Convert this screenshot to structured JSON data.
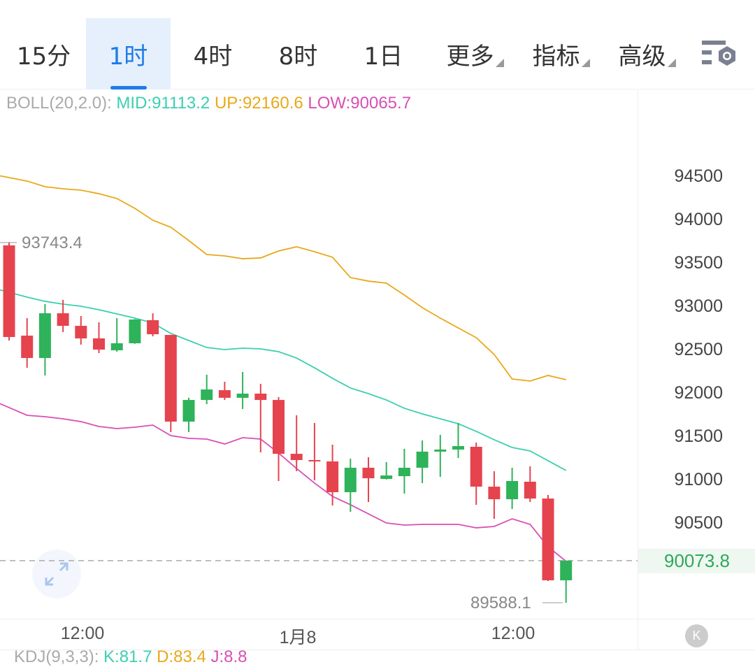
{
  "tabs": [
    {
      "label": "15分",
      "active": false,
      "dropdown": false
    },
    {
      "label": "1时",
      "active": true,
      "dropdown": false
    },
    {
      "label": "4时",
      "active": false,
      "dropdown": false
    },
    {
      "label": "8时",
      "active": false,
      "dropdown": false
    },
    {
      "label": "1日",
      "active": false,
      "dropdown": false
    },
    {
      "label": "更多",
      "active": false,
      "dropdown": true
    },
    {
      "label": "指标",
      "active": false,
      "dropdown": true
    },
    {
      "label": "高级",
      "active": false,
      "dropdown": true
    }
  ],
  "settings_icon": "chart-settings-icon",
  "legend": {
    "name": "BOLL(20,2.0):",
    "mid": "MID:91113.2",
    "up": "UP:92160.6",
    "low": "LOW:90065.7"
  },
  "colors": {
    "up_candle": "#2fb35a",
    "down_candle": "#e5444f",
    "mid": "#3ccfb0",
    "upper": "#e8a91a",
    "lower": "#d94fb5",
    "accent": "#1e7ce8"
  },
  "chart_data": {
    "type": "candlestick",
    "ylim": [
      89400,
      95300
    ],
    "y_ticks": [
      "94500",
      "94000",
      "93500",
      "93000",
      "92500",
      "92000",
      "91500",
      "91000",
      "90500"
    ],
    "x_ticks": [
      "12:00",
      "1月8",
      "12:00"
    ],
    "last_price": "90073.8",
    "high_label": "93743.4",
    "low_label": "89588.1",
    "candles": [
      [
        93710,
        93743.4,
        92613,
        92653
      ],
      [
        92669,
        92871,
        92298,
        92411
      ],
      [
        92411,
        93032,
        92210,
        92927
      ],
      [
        92927,
        93081,
        92710,
        92782
      ],
      [
        92782,
        92895,
        92565,
        92637
      ],
      [
        92637,
        92823,
        92468,
        92508
      ],
      [
        92500,
        92871,
        92484,
        92581
      ],
      [
        92581,
        92860,
        92575,
        92855
      ],
      [
        92847,
        92927,
        92661,
        92685
      ],
      [
        92677,
        92677,
        91556,
        91677
      ],
      [
        91677,
        91952,
        91556,
        91927
      ],
      [
        91927,
        92218,
        91879,
        92048
      ],
      [
        92040,
        92137,
        91927,
        91952
      ],
      [
        91952,
        92250,
        91823,
        92000
      ],
      [
        92000,
        92113,
        91323,
        91927
      ],
      [
        91927,
        91960,
        90992,
        91306
      ],
      [
        91306,
        91750,
        91105,
        91234
      ],
      [
        91234,
        91661,
        91000,
        91218
      ],
      [
        91218,
        91411,
        90710,
        90863
      ],
      [
        90863,
        91250,
        90637,
        91145
      ],
      [
        91145,
        91266,
        90750,
        91024
      ],
      [
        91016,
        91210,
        91010,
        91056
      ],
      [
        91048,
        91363,
        90847,
        91145
      ],
      [
        91145,
        91460,
        90968,
        91331
      ],
      [
        91331,
        91524,
        91040,
        91355
      ],
      [
        91355,
        91661,
        91258,
        91395
      ],
      [
        91387,
        91435,
        90718,
        90927
      ],
      [
        90927,
        91105,
        90556,
        90782
      ],
      [
        90782,
        91145,
        90669,
        90992
      ],
      [
        90984,
        91161,
        90750,
        90790
      ],
      [
        90790,
        90831,
        89839,
        89847
      ],
      [
        89847,
        90073.8,
        89588.1,
        90073.8
      ]
    ],
    "boll_mid": [
      93169,
      93113,
      93065,
      93032,
      93008,
      92968,
      92919,
      92871,
      92815,
      92694,
      92613,
      92532,
      92508,
      92524,
      92516,
      92484,
      92411,
      92298,
      92177,
      92065,
      92000,
      91927,
      91831,
      91766,
      91710,
      91653,
      91565,
      91468,
      91379,
      91339,
      91226,
      91113.2
    ],
    "boll_up": [
      94492,
      94452,
      94387,
      94363,
      94347,
      94306,
      94250,
      94137,
      94000,
      93919,
      93766,
      93605,
      93589,
      93556,
      93565,
      93645,
      93694,
      93637,
      93573,
      93339,
      93298,
      93274,
      93137,
      92992,
      92871,
      92758,
      92645,
      92452,
      92169,
      92145,
      92210,
      92160.6
    ],
    "boll_low": [
      91839,
      91750,
      91734,
      91710,
      91677,
      91621,
      91597,
      91613,
      91637,
      91516,
      91484,
      91476,
      91419,
      91492,
      91476,
      91315,
      91137,
      90968,
      90815,
      90718,
      90613,
      90508,
      90484,
      90492,
      90492,
      90492,
      90452,
      90468,
      90556,
      90492,
      90234,
      90065.7
    ]
  },
  "k_button": "K",
  "kdj": {
    "name": "KDJ(9,3,3):",
    "k": "K:81.7",
    "d": "D:83.4",
    "j": "J:8.8"
  }
}
